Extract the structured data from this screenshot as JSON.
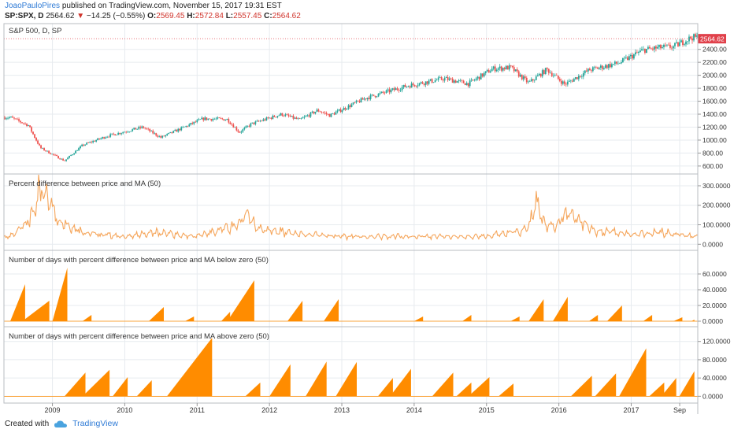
{
  "header": {
    "author": "JoaoPauloPires",
    "published": "published on TradingView.com, November 15, 2017 19:31 EST",
    "symbol": "SP:SPX, D",
    "last": "2564.62",
    "change": "−14.25 (−0.55%)",
    "o_label": "O:",
    "o_value": "2569.45",
    "h_label": "H:",
    "h_value": "2572.84",
    "l_label": "L:",
    "l_value": "2557.45",
    "c_label": "C:",
    "c_value": "2564.62"
  },
  "footer": {
    "created_with": "Created with",
    "brand": "TradingView"
  },
  "colors": {
    "candle_up": "#26a69a",
    "candle_down": "#ef5350",
    "indicator_line": "#f5a55a",
    "histogram_fill": "#ff8c00",
    "price_tag": "#e0404a",
    "grid": "#e7ebef"
  },
  "chart_data": [
    {
      "type": "line",
      "title": "S&P 500, D, SP",
      "series": [
        {
          "name": "",
          "x": [
            "2008-06",
            "2008-09",
            "2008-11",
            "2009-03",
            "2009-06",
            "2009-10",
            "2010-04",
            "2010-07",
            "2011-02",
            "2011-06",
            "2011-08",
            "2011-10",
            "2012-03",
            "2012-06",
            "2012-09",
            "2012-11",
            "2013-05",
            "2013-12",
            "2014-06",
            "2014-10",
            "2015-02",
            "2015-05",
            "2015-08",
            "2015-11",
            "2016-02",
            "2016-06",
            "2016-11",
            "2017-03",
            "2017-06",
            "2017-08",
            "2017-11"
          ],
          "values": [
            1350,
            1230,
            880,
            680,
            920,
            1060,
            1200,
            1040,
            1330,
            1320,
            1120,
            1250,
            1400,
            1310,
            1460,
            1380,
            1650,
            1840,
            1950,
            1870,
            2100,
            2120,
            1880,
            2090,
            1860,
            2080,
            2190,
            2390,
            2430,
            2440,
            2585
          ]
        }
      ],
      "ylim": [
        550,
        2700
      ],
      "yticks": [
        "600.00",
        "800.00",
        "1000.00",
        "1200.00",
        "1400.00",
        "1600.00",
        "1800.00",
        "2000.00",
        "2200.00",
        "2400.00"
      ],
      "last_price_label": "2564.62"
    },
    {
      "type": "line",
      "title": "Percent difference between price and MA (50)",
      "series": [
        {
          "name": "",
          "x": [
            "2008-06",
            "2008-08",
            "2008-10",
            "2008-11",
            "2008-12",
            "2009-02",
            "2009-06",
            "2010-01",
            "2010-06",
            "2011-01",
            "2011-08",
            "2011-09",
            "2011-11",
            "2012-06",
            "2013-01",
            "2014-01",
            "2015-01",
            "2015-08",
            "2015-09",
            "2015-11",
            "2016-01",
            "2016-02",
            "2016-07",
            "2017-01",
            "2017-06",
            "2017-11"
          ],
          "values": [
            40,
            90,
            150,
            310,
            270,
            120,
            60,
            40,
            60,
            40,
            100,
            170,
            80,
            50,
            40,
            40,
            40,
            80,
            210,
            90,
            110,
            170,
            70,
            50,
            60,
            40
          ]
        }
      ],
      "ylim": [
        -15,
        320
      ],
      "yticks": [
        "0.0000",
        "100.0000",
        "200.0000",
        "300.0000"
      ]
    },
    {
      "type": "area",
      "title": "Number of days with percent difference between price and MA below zero (50)",
      "episodes": [
        {
          "start": "2008-06",
          "peak": "2008-08",
          "peak_value": 47
        },
        {
          "start": "2008-08",
          "peak": "2008-12",
          "peak_value": 26
        },
        {
          "start": "2009-01",
          "peak": "2009-03",
          "peak_value": 68
        },
        {
          "start": "2009-06",
          "peak": "2009-07",
          "peak_value": 8
        },
        {
          "start": "2010-05",
          "peak": "2010-07",
          "peak_value": 18
        },
        {
          "start": "2010-11",
          "peak": "2010-12",
          "peak_value": 6
        },
        {
          "start": "2011-05",
          "peak": "2011-06",
          "peak_value": 12
        },
        {
          "start": "2011-06",
          "peak": "2011-10",
          "peak_value": 52
        },
        {
          "start": "2012-04",
          "peak": "2012-06",
          "peak_value": 26
        },
        {
          "start": "2012-10",
          "peak": "2012-12",
          "peak_value": 28
        },
        {
          "start": "2014-01",
          "peak": "2014-02",
          "peak_value": 6
        },
        {
          "start": "2014-09",
          "peak": "2014-10",
          "peak_value": 8
        },
        {
          "start": "2015-05",
          "peak": "2015-06",
          "peak_value": 6
        },
        {
          "start": "2015-08",
          "peak": "2015-10",
          "peak_value": 28
        },
        {
          "start": "2015-12",
          "peak": "2016-02",
          "peak_value": 31
        },
        {
          "start": "2016-06",
          "peak": "2016-07",
          "peak_value": 8
        },
        {
          "start": "2016-09",
          "peak": "2016-11",
          "peak_value": 20
        },
        {
          "start": "2017-03",
          "peak": "2017-04",
          "peak_value": 8
        },
        {
          "start": "2017-08",
          "peak": "2017-09",
          "peak_value": 5
        },
        {
          "start": "2017-11",
          "peak": "2017-11",
          "peak_value": 2
        }
      ],
      "ylim": [
        -3,
        80
      ],
      "yticks": [
        "0.0000",
        "20.0000",
        "40.0000",
        "60.0000"
      ]
    },
    {
      "type": "area",
      "title": "Number of days with percent difference between price and MA above zero (50)",
      "episodes": [
        {
          "start": "2009-03",
          "peak": "2009-06",
          "peak_value": 52
        },
        {
          "start": "2009-06",
          "peak": "2009-10",
          "peak_value": 58
        },
        {
          "start": "2009-11",
          "peak": "2010-01",
          "peak_value": 42
        },
        {
          "start": "2010-03",
          "peak": "2010-05",
          "peak_value": 35
        },
        {
          "start": "2010-08",
          "peak": "2011-03",
          "peak_value": 128
        },
        {
          "start": "2011-09",
          "peak": "2011-11",
          "peak_value": 30
        },
        {
          "start": "2012-01",
          "peak": "2012-04",
          "peak_value": 70
        },
        {
          "start": "2012-07",
          "peak": "2012-10",
          "peak_value": 76
        },
        {
          "start": "2012-12",
          "peak": "2013-03",
          "peak_value": 75
        },
        {
          "start": "2013-07",
          "peak": "2013-09",
          "peak_value": 40
        },
        {
          "start": "2013-09",
          "peak": "2013-12",
          "peak_value": 60
        },
        {
          "start": "2014-04",
          "peak": "2014-07",
          "peak_value": 52
        },
        {
          "start": "2014-08",
          "peak": "2014-10",
          "peak_value": 30
        },
        {
          "start": "2014-10",
          "peak": "2015-01",
          "peak_value": 42
        },
        {
          "start": "2015-03",
          "peak": "2015-05",
          "peak_value": 28
        },
        {
          "start": "2016-03",
          "peak": "2016-06",
          "peak_value": 45
        },
        {
          "start": "2016-07",
          "peak": "2016-10",
          "peak_value": 50
        },
        {
          "start": "2016-11",
          "peak": "2017-03",
          "peak_value": 105
        },
        {
          "start": "2017-04",
          "peak": "2017-06",
          "peak_value": 30
        },
        {
          "start": "2017-06",
          "peak": "2017-08",
          "peak_value": 40
        },
        {
          "start": "2017-09",
          "peak": "2017-11",
          "peak_value": 55
        }
      ],
      "ylim": [
        -8,
        135
      ],
      "yticks": [
        "0.0000",
        "40.0000",
        "80.0000",
        "120.0000"
      ]
    }
  ],
  "xaxis": {
    "ticks": [
      "2009",
      "2010",
      "2011",
      "2012",
      "2013",
      "2014",
      "2015",
      "2016",
      "2017",
      "Sep"
    ]
  }
}
